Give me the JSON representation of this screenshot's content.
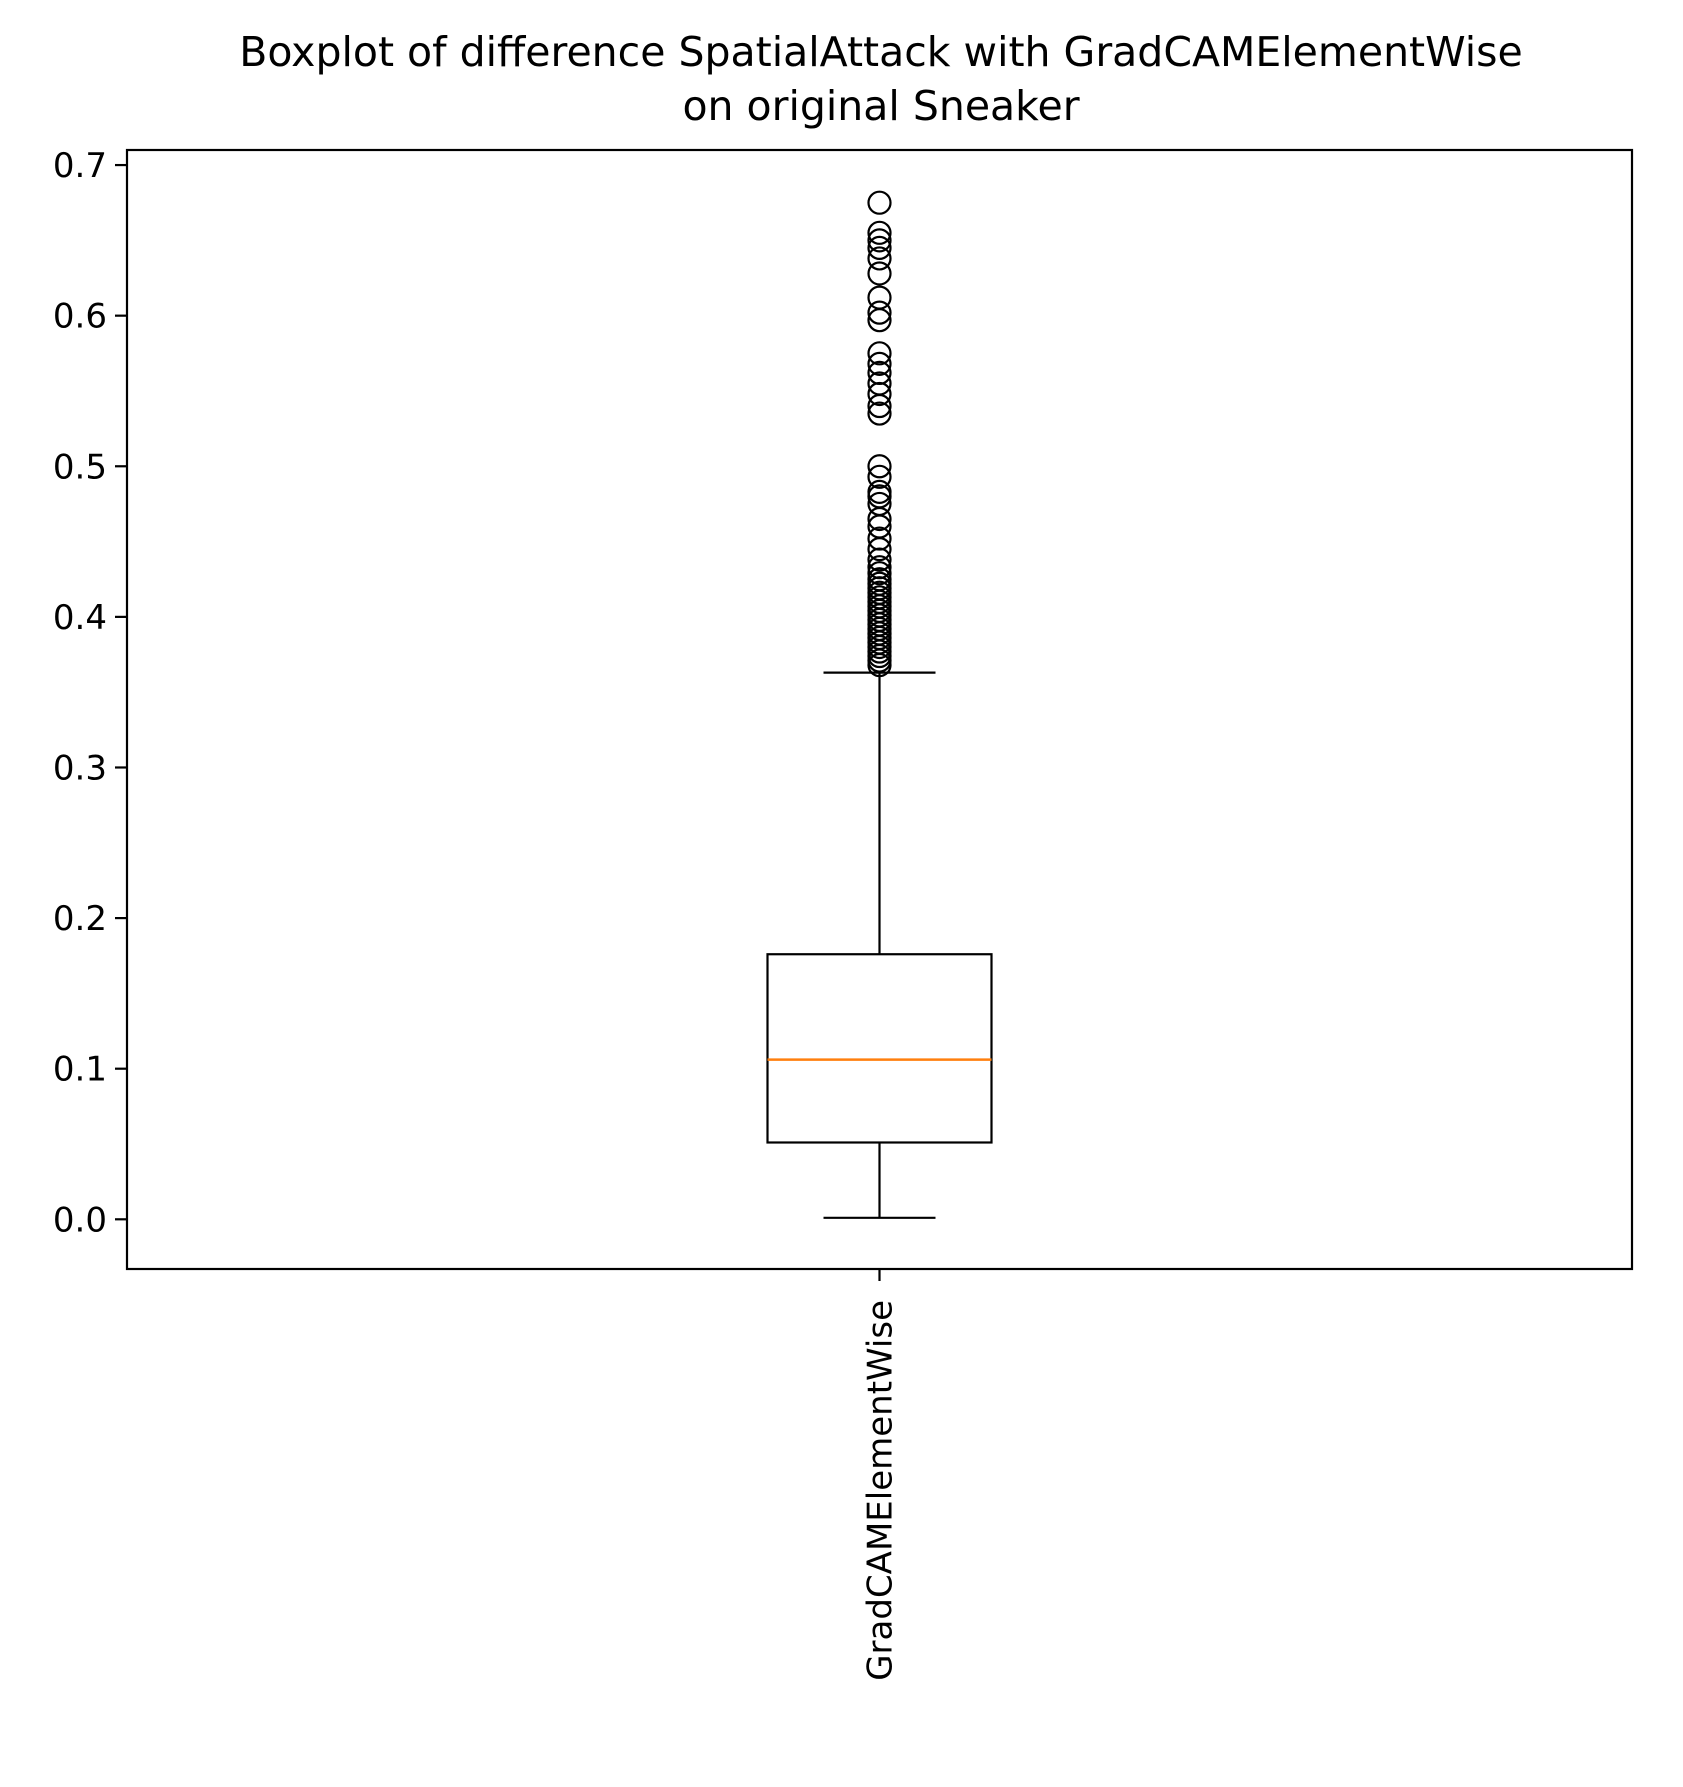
{
  "chart_data": {
    "type": "boxplot",
    "title_lines": [
      "Boxplot of difference SpatialAttack with GradCAMElementWise",
      "on original Sneaker"
    ],
    "xlabel": "",
    "ylabel": "",
    "ylim": [
      -0.033,
      0.71
    ],
    "yticks": [
      0.0,
      0.1,
      0.2,
      0.3,
      0.4,
      0.5,
      0.6,
      0.7
    ],
    "ytick_labels": [
      "0.0",
      "0.1",
      "0.2",
      "0.3",
      "0.4",
      "0.5",
      "0.6",
      "0.7"
    ],
    "categories": [
      "GradCAMElementWise"
    ],
    "boxes": [
      {
        "name": "GradCAMElementWise",
        "whisker_low": 0.001,
        "q1": 0.051,
        "median": 0.106,
        "q3": 0.176,
        "whisker_high": 0.363,
        "outliers": [
          0.368,
          0.371,
          0.374,
          0.377,
          0.38,
          0.383,
          0.386,
          0.389,
          0.392,
          0.395,
          0.398,
          0.401,
          0.404,
          0.407,
          0.41,
          0.413,
          0.416,
          0.419,
          0.422,
          0.425,
          0.429,
          0.433,
          0.438,
          0.445,
          0.452,
          0.46,
          0.465,
          0.475,
          0.48,
          0.483,
          0.493,
          0.5,
          0.535,
          0.54,
          0.548,
          0.555,
          0.562,
          0.568,
          0.575,
          0.597,
          0.602,
          0.612,
          0.628,
          0.638,
          0.645,
          0.65,
          0.655,
          0.675
        ]
      }
    ],
    "colors": {
      "median": "#ff7f0e",
      "box": "#000000",
      "background": "#ffffff"
    }
  }
}
